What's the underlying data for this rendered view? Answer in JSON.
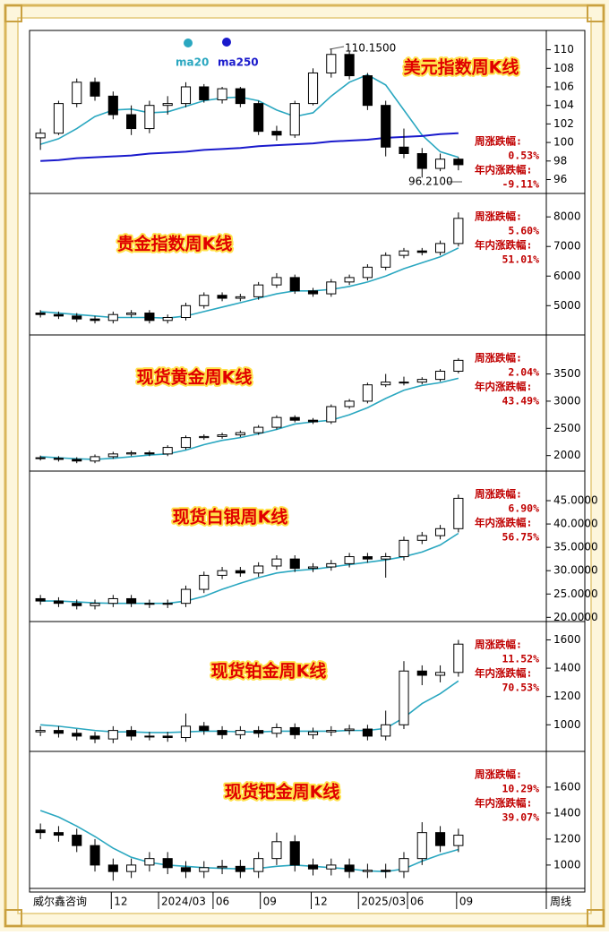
{
  "x_axis": {
    "source_label": "威尔鑫咨询",
    "period_label": "周线",
    "xlim": [
      -0.5,
      23.5
    ],
    "xticks": [
      {
        "value": 3.9,
        "label": "12"
      },
      {
        "value": 6.5,
        "label": "2024/03"
      },
      {
        "value": 9.5,
        "label": "06"
      },
      {
        "value": 12.1,
        "label": "09"
      },
      {
        "value": 14.9,
        "label": "12"
      },
      {
        "value": 17.5,
        "label": "2025/03"
      },
      {
        "value": 20.2,
        "label": "06"
      },
      {
        "value": 22.9,
        "label": "09"
      }
    ]
  },
  "chart_data": [
    {
      "type": "candlestick",
      "title": "美元指数周K线",
      "weekly_label": "周涨跌幅:",
      "weekly_change": "0.53%",
      "ytd_label": "年内涨跌幅:",
      "ytd_change": "-9.11%",
      "high_label": "110.1500",
      "low_label": "96.2100",
      "legend": true,
      "ylim": [
        94.5,
        111.7
      ],
      "yticks": [
        96,
        98,
        100,
        102,
        104,
        106,
        108,
        110
      ],
      "open": [
        100.5,
        101,
        104.2,
        106.5,
        105,
        103,
        101.5,
        104,
        104.2,
        106,
        104.6,
        105.8,
        104.2,
        101.2,
        100.8,
        104.2,
        107.5,
        109.5,
        107.2,
        104,
        99.5,
        98.8,
        97.2,
        98.2
      ],
      "high": [
        101.5,
        104.5,
        106.9,
        107,
        105.5,
        104,
        104.5,
        105,
        106.5,
        106.3,
        106,
        106,
        104.5,
        101.8,
        104.5,
        108,
        110.15,
        109.8,
        107.5,
        104.5,
        101.5,
        99.4,
        98.8,
        98.4
      ],
      "low": [
        99.2,
        100.8,
        103.8,
        104.5,
        102.5,
        100.8,
        101,
        103,
        103.8,
        104.3,
        104.2,
        103.8,
        100.8,
        100.2,
        100.5,
        104,
        107,
        106.8,
        103.5,
        98.5,
        98.3,
        96.21,
        96.9,
        97
      ],
      "close": [
        101,
        104.2,
        106.5,
        105,
        103,
        101.5,
        104,
        104.2,
        106,
        104.6,
        105.8,
        104.2,
        101.2,
        100.8,
        104.2,
        107.5,
        109.5,
        107.2,
        104,
        99.5,
        98.8,
        97.2,
        98.2,
        97.6
      ],
      "series": [
        {
          "name": "ma20",
          "color": "#2aa7c0",
          "values": [
            99.8,
            100.4,
            101.5,
            102.8,
            103.5,
            103.6,
            103.2,
            103.3,
            103.9,
            104.5,
            104.8,
            104.9,
            104.5,
            103.5,
            102.8,
            103.2,
            105,
            106.5,
            107.3,
            106.2,
            103.5,
            100.8,
            99,
            98.4
          ]
        },
        {
          "name": "ma250",
          "color": "#1a1acc",
          "values": [
            98.0,
            98.1,
            98.3,
            98.4,
            98.5,
            98.6,
            98.8,
            98.9,
            99.0,
            99.2,
            99.3,
            99.4,
            99.6,
            99.7,
            99.8,
            99.9,
            100.1,
            100.2,
            100.3,
            100.5,
            100.6,
            100.7,
            100.9,
            101.0
          ]
        }
      ]
    },
    {
      "type": "candlestick",
      "title": "贵金指数周K线",
      "weekly_label": "周涨跌幅:",
      "weekly_change": "5.60%",
      "ytd_label": "年内涨跌幅:",
      "ytd_change": "51.01%",
      "ylim": [
        4010,
        8550
      ],
      "yticks": [
        5000,
        6000,
        7000,
        8000
      ],
      "open": [
        4750,
        4700,
        4650,
        4550,
        4500,
        4700,
        4750,
        4500,
        4600,
        5000,
        5350,
        5250,
        5300,
        5700,
        5950,
        5500,
        5400,
        5800,
        5950,
        6300,
        6700,
        6850,
        6800,
        7100
      ],
      "high": [
        4850,
        4800,
        4750,
        4650,
        4800,
        4850,
        4850,
        4700,
        5100,
        5450,
        5450,
        5400,
        5800,
        6100,
        6050,
        5600,
        5900,
        6050,
        6400,
        6800,
        6950,
        6950,
        7200,
        8150
      ],
      "low": [
        4600,
        4550,
        4450,
        4400,
        4400,
        4600,
        4400,
        4400,
        4500,
        4900,
        5150,
        5150,
        5200,
        5600,
        5400,
        5300,
        5300,
        5700,
        5850,
        6200,
        6600,
        6700,
        6700,
        7000
      ],
      "close": [
        4700,
        4650,
        4550,
        4500,
        4700,
        4750,
        4500,
        4600,
        5000,
        5350,
        5250,
        5300,
        5700,
        5950,
        5500,
        5400,
        5800,
        5950,
        6300,
        6700,
        6850,
        6800,
        7100,
        7950
      ],
      "series": [
        {
          "color": "#2aa7c0",
          "values": [
            4800,
            4750,
            4700,
            4650,
            4600,
            4600,
            4600,
            4580,
            4650,
            4800,
            4950,
            5100,
            5250,
            5400,
            5500,
            5500,
            5550,
            5650,
            5800,
            6000,
            6250,
            6450,
            6650,
            6950
          ]
        }
      ]
    },
    {
      "type": "candlestick",
      "title": "现货黄金周K线",
      "weekly_label": "周涨跌幅:",
      "weekly_change": "2.04%",
      "ytd_label": "年内涨跌幅:",
      "ytd_change": "43.49%",
      "ylim": [
        1715,
        4085
      ],
      "yticks": [
        2000,
        2500,
        3000,
        3500
      ],
      "open": [
        1960,
        1950,
        1930,
        1900,
        1980,
        2030,
        2050,
        2030,
        2150,
        2330,
        2350,
        2380,
        2420,
        2520,
        2700,
        2650,
        2620,
        2900,
        3000,
        3300,
        3350,
        3350,
        3400,
        3550
      ],
      "high": [
        2000,
        1990,
        1970,
        2020,
        2070,
        2090,
        2090,
        2190,
        2370,
        2390,
        2420,
        2460,
        2560,
        2740,
        2740,
        2690,
        2940,
        3040,
        3340,
        3500,
        3450,
        3440,
        3590,
        3790
      ],
      "low": [
        1910,
        1890,
        1860,
        1860,
        1940,
        1990,
        1990,
        1990,
        2110,
        2290,
        2310,
        2340,
        2380,
        2480,
        2610,
        2580,
        2580,
        2860,
        2960,
        3260,
        3290,
        3310,
        3360,
        3510
      ],
      "close": [
        1950,
        1930,
        1900,
        1980,
        2030,
        2050,
        2030,
        2150,
        2330,
        2350,
        2380,
        2420,
        2520,
        2700,
        2650,
        2620,
        2900,
        3000,
        3300,
        3350,
        3350,
        3400,
        3550,
        3750
      ],
      "series": [
        {
          "color": "#2aa7c0",
          "values": [
            1980,
            1960,
            1940,
            1930,
            1950,
            1980,
            2010,
            2030,
            2100,
            2200,
            2280,
            2330,
            2400,
            2480,
            2580,
            2620,
            2650,
            2750,
            2880,
            3050,
            3200,
            3290,
            3340,
            3420
          ]
        }
      ]
    },
    {
      "type": "candlestick",
      "title": "现货白银周K线",
      "weekly_label": "周涨跌幅:",
      "weekly_change": "6.90%",
      "ytd_label": "年内涨跌幅:",
      "ytd_change": "56.75%",
      "ylim": [
        19.1,
        49.8
      ],
      "yticks": [
        {
          "value": 20,
          "label": "20.0000"
        },
        {
          "value": 25,
          "label": "25.0000"
        },
        {
          "value": 30,
          "label": "30.0000"
        },
        {
          "value": 35,
          "label": "35.0000"
        },
        {
          "value": 40,
          "label": "40.0000"
        },
        {
          "value": 45,
          "label": "45.0000"
        }
      ],
      "open": [
        24,
        23.5,
        23,
        22.5,
        23,
        24,
        23,
        22.8,
        23,
        26,
        29,
        30,
        29.5,
        31,
        32.5,
        30.5,
        30.8,
        31.5,
        33,
        32.5,
        33,
        36.5,
        37.5,
        39
      ],
      "high": [
        24.8,
        24.3,
        23.8,
        23.8,
        24.8,
        24.8,
        23.8,
        23.8,
        26.8,
        29.8,
        30.8,
        30.8,
        31.8,
        33.3,
        33.3,
        31.6,
        32.3,
        33.8,
        33.8,
        33.8,
        37.3,
        38.3,
        39.8,
        46.3
      ],
      "low": [
        22.7,
        22.2,
        21.7,
        21.7,
        22.2,
        22.2,
        22,
        22,
        22.2,
        25.2,
        28.2,
        28.7,
        28.7,
        30.2,
        29.7,
        29.7,
        30,
        30.7,
        31.7,
        28.5,
        32.2,
        35.7,
        36.7,
        38.2
      ],
      "close": [
        23.5,
        23,
        22.5,
        23,
        24,
        23,
        22.8,
        23,
        26,
        29,
        30,
        29.5,
        31,
        32.5,
        30.5,
        30.8,
        31.5,
        33,
        32.5,
        33,
        36.5,
        37.5,
        39,
        45.5
      ],
      "series": [
        {
          "color": "#2aa7c0",
          "values": [
            23.5,
            23.5,
            23.3,
            23.1,
            23,
            23,
            23,
            23,
            23.5,
            24.5,
            26,
            27.3,
            28.5,
            29.5,
            30,
            30.3,
            30.8,
            31.3,
            31.8,
            32.3,
            33,
            34,
            35.5,
            38
          ]
        }
      ]
    },
    {
      "type": "candlestick",
      "title": "现货铂金周K线",
      "weekly_label": "周涨跌幅:",
      "weekly_change": "11.52%",
      "ytd_label": "年内涨跌幅:",
      "ytd_change": "70.53%",
      "ylim": [
        812,
        1679
      ],
      "yticks": [
        1000,
        1200,
        1400,
        1600
      ],
      "open": [
        950,
        960,
        940,
        920,
        900,
        960,
        920,
        920,
        910,
        990,
        960,
        930,
        960,
        940,
        980,
        930,
        950,
        960,
        970,
        920,
        1000,
        1380,
        1350,
        1370
      ],
      "high": [
        990,
        990,
        970,
        950,
        990,
        990,
        950,
        950,
        1080,
        1020,
        990,
        990,
        990,
        1010,
        1010,
        980,
        990,
        1000,
        1000,
        1100,
        1450,
        1420,
        1420,
        1600
      ],
      "low": [
        920,
        910,
        890,
        870,
        870,
        890,
        890,
        880,
        880,
        930,
        900,
        900,
        910,
        910,
        900,
        900,
        920,
        930,
        890,
        890,
        970,
        1280,
        1300,
        1340
      ],
      "close": [
        960,
        940,
        920,
        900,
        960,
        920,
        920,
        910,
        990,
        960,
        930,
        960,
        940,
        980,
        930,
        950,
        960,
        970,
        920,
        1000,
        1380,
        1350,
        1370,
        1570
      ],
      "series": [
        {
          "color": "#2aa7c0",
          "values": [
            1000,
            990,
            975,
            960,
            950,
            950,
            945,
            945,
            950,
            955,
            955,
            950,
            950,
            955,
            955,
            955,
            955,
            960,
            960,
            975,
            1050,
            1150,
            1220,
            1310
          ]
        }
      ]
    },
    {
      "type": "candlestick",
      "title": "现货钯金周K线",
      "weekly_label": "周涨跌幅:",
      "weekly_change": "10.29%",
      "ytd_label": "年内涨跌幅:",
      "ytd_change": "39.07%",
      "ylim": [
        820,
        1820
      ],
      "yticks": [
        1000,
        1200,
        1400,
        1600
      ],
      "open": [
        1270,
        1250,
        1230,
        1150,
        1000,
        950,
        1000,
        1050,
        980,
        950,
        980,
        990,
        950,
        1050,
        1180,
        1000,
        970,
        1000,
        950,
        960,
        950,
        1050,
        1250,
        1150
      ],
      "high": [
        1320,
        1300,
        1280,
        1200,
        1050,
        1050,
        1100,
        1100,
        1030,
        1030,
        1040,
        1040,
        1100,
        1250,
        1230,
        1050,
        1050,
        1050,
        1010,
        1010,
        1100,
        1330,
        1300,
        1280
      ],
      "low": [
        1200,
        1180,
        1100,
        950,
        880,
        900,
        950,
        930,
        900,
        900,
        930,
        900,
        900,
        1000,
        950,
        920,
        920,
        900,
        900,
        900,
        900,
        1000,
        1100,
        1100
      ],
      "close": [
        1250,
        1230,
        1150,
        1000,
        950,
        1000,
        1050,
        980,
        950,
        980,
        990,
        950,
        1050,
        1180,
        1000,
        970,
        1000,
        950,
        960,
        950,
        1050,
        1250,
        1150,
        1230
      ],
      "series": [
        {
          "color": "#2aa7c0",
          "values": [
            1420,
            1370,
            1300,
            1220,
            1130,
            1060,
            1020,
            1000,
            990,
            980,
            975,
            970,
            975,
            990,
            1000,
            990,
            980,
            970,
            955,
            950,
            970,
            1030,
            1080,
            1120
          ]
        }
      ]
    }
  ]
}
